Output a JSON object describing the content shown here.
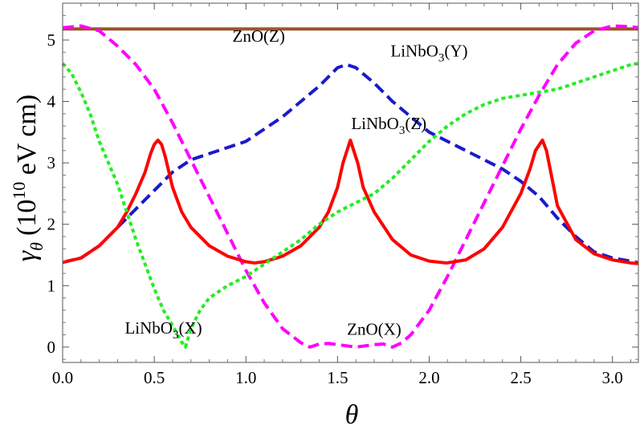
{
  "chart_data": {
    "type": "line",
    "title": "",
    "xlabel": "θ",
    "ylabel": {
      "symbol": "γ",
      "subscript": "θ",
      "open": "(10",
      "exponent": "10",
      "unit": " eV cm)"
    },
    "xlim": [
      0,
      3.1416
    ],
    "ylim": [
      -0.25,
      5.6
    ],
    "x_ticks": [
      0.0,
      0.5,
      1.0,
      1.5,
      2.0,
      2.5,
      3.0
    ],
    "x_tick_labels": [
      "0.0",
      "0.5",
      "1.0",
      "1.5",
      "2.0",
      "2.5",
      "3.0"
    ],
    "y_ticks": [
      0,
      1,
      2,
      3,
      4,
      5
    ],
    "y_tick_labels": [
      "0",
      "1",
      "2",
      "3",
      "4",
      "5"
    ],
    "series": [
      {
        "name": "ZnO(Z)",
        "color": "#a0522d",
        "style": "solid",
        "x": [
          0.0,
          3.1416
        ],
        "y": [
          5.18,
          5.18
        ]
      },
      {
        "name": "ZnO(X)",
        "color": "#ff00ff",
        "style": "dashed",
        "x": [
          0.0,
          0.1,
          0.2,
          0.3,
          0.4,
          0.5,
          0.6,
          0.7,
          0.8,
          0.9,
          1.0,
          1.1,
          1.2,
          1.3,
          1.35,
          1.4,
          1.45,
          1.5,
          1.55,
          1.6,
          1.65,
          1.7,
          1.75,
          1.8,
          1.85,
          1.9,
          2.0,
          2.1,
          2.2,
          2.3,
          2.4,
          2.5,
          2.6,
          2.7,
          2.8,
          2.9,
          3.0,
          3.1,
          3.1416
        ],
        "y": [
          5.2,
          5.23,
          5.15,
          4.9,
          4.6,
          4.2,
          3.65,
          3.05,
          2.45,
          1.85,
          1.25,
          0.72,
          0.3,
          0.07,
          0.0,
          0.05,
          0.06,
          0.04,
          0.02,
          0.0,
          0.02,
          0.04,
          0.05,
          0.0,
          0.07,
          0.2,
          0.6,
          1.15,
          1.75,
          2.35,
          2.95,
          3.55,
          4.1,
          4.6,
          4.95,
          5.15,
          5.23,
          5.22,
          5.2
        ]
      },
      {
        "name": "LiNbO₃(Y)",
        "color": "#1a1acc",
        "style": "dashed",
        "x": [
          0.0,
          0.1,
          0.2,
          0.3,
          0.4,
          0.5,
          0.6,
          0.7,
          0.8,
          0.9,
          1.0,
          1.1,
          1.2,
          1.3,
          1.4,
          1.5,
          1.55,
          1.6,
          1.7,
          1.8,
          1.9,
          2.0,
          2.1,
          2.2,
          2.3,
          2.4,
          2.5,
          2.6,
          2.7,
          2.8,
          2.9,
          3.0,
          3.1,
          3.1416
        ],
        "y": [
          1.38,
          1.45,
          1.65,
          1.95,
          2.25,
          2.55,
          2.85,
          3.05,
          3.15,
          3.25,
          3.35,
          3.55,
          3.75,
          4.0,
          4.25,
          4.55,
          4.6,
          4.55,
          4.3,
          4.0,
          3.75,
          3.5,
          3.35,
          3.2,
          3.05,
          2.9,
          2.7,
          2.45,
          2.1,
          1.8,
          1.55,
          1.45,
          1.4,
          1.38
        ]
      },
      {
        "name": "LiNbO₃(Z)",
        "color": "#ff0000",
        "style": "solid",
        "x": [
          0.0,
          0.1,
          0.2,
          0.3,
          0.35,
          0.4,
          0.45,
          0.48,
          0.5,
          0.52,
          0.54,
          0.56,
          0.6,
          0.65,
          0.7,
          0.8,
          0.9,
          1.0,
          1.047,
          1.1,
          1.2,
          1.3,
          1.4,
          1.45,
          1.5,
          1.53,
          1.57,
          1.61,
          1.64,
          1.7,
          1.8,
          1.9,
          2.0,
          2.094,
          2.2,
          2.3,
          2.4,
          2.5,
          2.55,
          2.58,
          2.618,
          2.64,
          2.66,
          2.7,
          2.8,
          2.9,
          3.0,
          3.1,
          3.1416
        ],
        "y": [
          1.38,
          1.45,
          1.65,
          1.95,
          2.2,
          2.5,
          2.85,
          3.15,
          3.3,
          3.37,
          3.3,
          3.1,
          2.6,
          2.2,
          1.95,
          1.65,
          1.48,
          1.39,
          1.37,
          1.39,
          1.48,
          1.65,
          1.95,
          2.2,
          2.6,
          3.0,
          3.37,
          3.0,
          2.6,
          2.2,
          1.75,
          1.5,
          1.4,
          1.37,
          1.42,
          1.6,
          1.95,
          2.5,
          2.9,
          3.2,
          3.37,
          3.2,
          2.9,
          2.3,
          1.75,
          1.52,
          1.42,
          1.37,
          1.36
        ]
      },
      {
        "name": "LiNbO₃(X)",
        "color": "#22ee22",
        "style": "dotted",
        "x": [
          0.0,
          0.05,
          0.1,
          0.15,
          0.2,
          0.3,
          0.4,
          0.5,
          0.55,
          0.6,
          0.65,
          0.67,
          0.7,
          0.75,
          0.8,
          0.9,
          1.0,
          1.1,
          1.2,
          1.3,
          1.4,
          1.5,
          1.6,
          1.7,
          1.8,
          1.9,
          2.0,
          2.1,
          2.2,
          2.3,
          2.4,
          2.5,
          2.6,
          2.7,
          2.8,
          2.9,
          3.0,
          3.1,
          3.1416
        ],
        "y": [
          4.62,
          4.45,
          4.15,
          3.8,
          3.35,
          2.65,
          1.75,
          0.95,
          0.6,
          0.35,
          0.08,
          0.0,
          0.3,
          0.6,
          0.8,
          1.0,
          1.15,
          1.35,
          1.55,
          1.75,
          2.0,
          2.2,
          2.35,
          2.5,
          2.75,
          3.05,
          3.35,
          3.6,
          3.8,
          3.95,
          4.05,
          4.1,
          4.15,
          4.2,
          4.3,
          4.4,
          4.5,
          4.6,
          4.62
        ]
      }
    ],
    "annotations": [
      {
        "id": "zno-z",
        "text": "ZnO(Z)",
        "at": [
          1.07,
          4.97
        ]
      },
      {
        "id": "linbo3-y",
        "text": "LiNbO",
        "sub": "3",
        "tail": "(Y)",
        "at": [
          2.0,
          4.73
        ]
      },
      {
        "id": "linbo3-z",
        "text": "LiNbO",
        "sub": "3",
        "tail": "(Z)",
        "at": [
          1.78,
          3.55
        ]
      },
      {
        "id": "linbo3-x",
        "text": "LiNbO",
        "sub": "3",
        "tail": "(X)",
        "at": [
          0.55,
          0.22
        ]
      },
      {
        "id": "zno-x",
        "text": "ZnO(X)",
        "at": [
          1.7,
          0.2
        ]
      }
    ]
  }
}
